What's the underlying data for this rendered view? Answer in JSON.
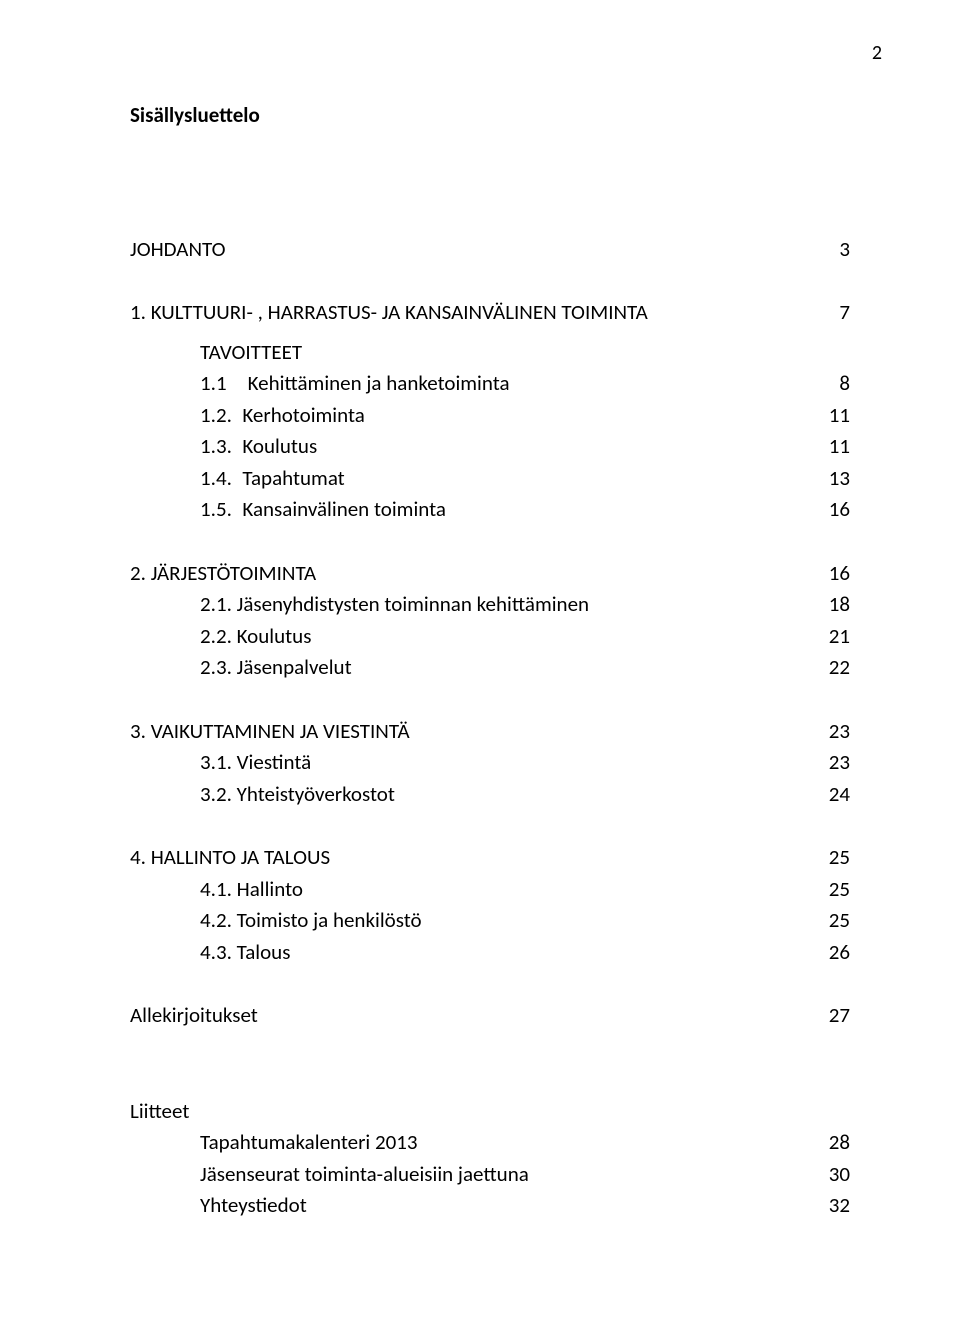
{
  "page_number": "2",
  "title": "Sisällysluettelo",
  "intro": {
    "label": "JOHDANTO",
    "page": "3"
  },
  "s1": {
    "head": {
      "label": "1. KULTTUURI- , HARRASTUS- JA KANSAINVÄLINEN TOIMINTA",
      "page": "7"
    },
    "subhead": "TAVOITTEET",
    "i1": {
      "label": "1.1 Kehittäminen ja hanketoiminta",
      "page": "8"
    },
    "i2": {
      "label": "1.2. Kerhotoiminta",
      "page": "11"
    },
    "i3": {
      "label": "1.3. Koulutus",
      "page": "11"
    },
    "i4": {
      "label": "1.4. Tapahtumat",
      "page": "13"
    },
    "i5": {
      "label": "1.5. Kansainvälinen toiminta",
      "page": "16"
    }
  },
  "s2": {
    "head": {
      "label": "2. JÄRJESTÖTOIMINTA",
      "page": "16"
    },
    "i1": {
      "label": "2.1. Jäsenyhdistysten toiminnan kehittäminen",
      "page": "18"
    },
    "i2": {
      "label": "2.2. Koulutus",
      "page": "21"
    },
    "i3": {
      "label": "2.3. Jäsenpalvelut",
      "page": "22"
    }
  },
  "s3": {
    "head": {
      "label": "3. VAIKUTTAMINEN JA VIESTINTÄ",
      "page": "23"
    },
    "i1": {
      "label": "3.1. Viestintä",
      "page": "23"
    },
    "i2": {
      "label": "3.2. Yhteistyöverkostot",
      "page": "24"
    }
  },
  "s4": {
    "head": {
      "label": "4. HALLINTO JA TALOUS",
      "page": "25"
    },
    "i1": {
      "label": "4.1. Hallinto",
      "page": "25"
    },
    "i2": {
      "label": "4.2. Toimisto ja henkilöstö",
      "page": "25"
    },
    "i3": {
      "label": "4.3. Talous",
      "page": "26"
    }
  },
  "signatures": {
    "label": "Allekirjoitukset",
    "page": "27"
  },
  "attachments_title": "Liitteet",
  "a1": {
    "label": "Tapahtumakalenteri 2013",
    "page": "28"
  },
  "a2": {
    "label": "Jäsenseurat toiminta-alueisiin jaettuna",
    "page": "30"
  },
  "a3": {
    "label": "Yhteystiedot",
    "page": "32"
  }
}
